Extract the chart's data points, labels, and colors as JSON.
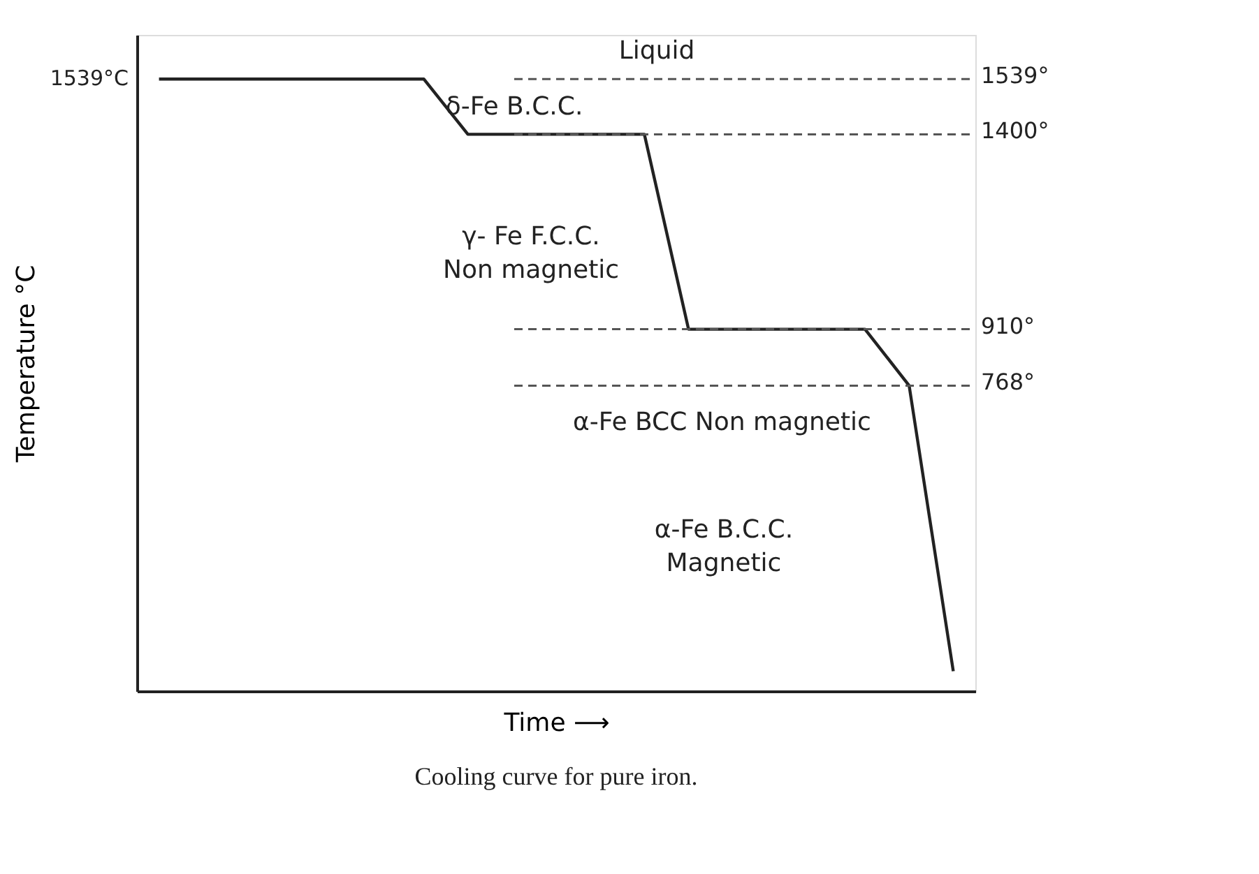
{
  "chart_data": {
    "type": "line",
    "xlabel": "Time ⟶",
    "ylabel": "Temperature °C",
    "categories": [
      null,
      null,
      null,
      null,
      null,
      null,
      null,
      null,
      null,
      null,
      null,
      null,
      null,
      null,
      null,
      null,
      null,
      null,
      null
    ],
    "values": [
      1539,
      1539,
      1539,
      1539,
      1539,
      1539,
      1539,
      1400,
      1400,
      1400,
      1400,
      1400,
      910,
      910,
      910,
      910,
      910,
      768,
      50
    ],
    "color": "#222222",
    "ylim": [
      0,
      1650
    ],
    "tick_labels": false,
    "grid": false,
    "line_style": "solid",
    "marker": "none",
    "ref_lines": [
      {
        "axis": "y",
        "value": 1539,
        "label": "1539°",
        "line_style": "dashed",
        "color": "#555555"
      },
      {
        "axis": "y",
        "value": 1400,
        "label": "1400°",
        "line_style": "dashed",
        "color": "#555555"
      },
      {
        "axis": "y",
        "value": 910,
        "label": "910°",
        "line_style": "dashed",
        "color": "#555555"
      },
      {
        "axis": "y",
        "value": 768,
        "label": "768°",
        "line_style": "dashed",
        "color": "#555555"
      }
    ],
    "annotations": [
      "1539°C",
      "Liquid",
      "δ-Fe B.C.C.",
      "γ- Fe F.C.C.\nNon magnetic",
      "α-Fe BCC Non magnetic",
      "α-Fe B.C.C.\nMagnetic",
      "Cooling curve for pure iron."
    ]
  }
}
